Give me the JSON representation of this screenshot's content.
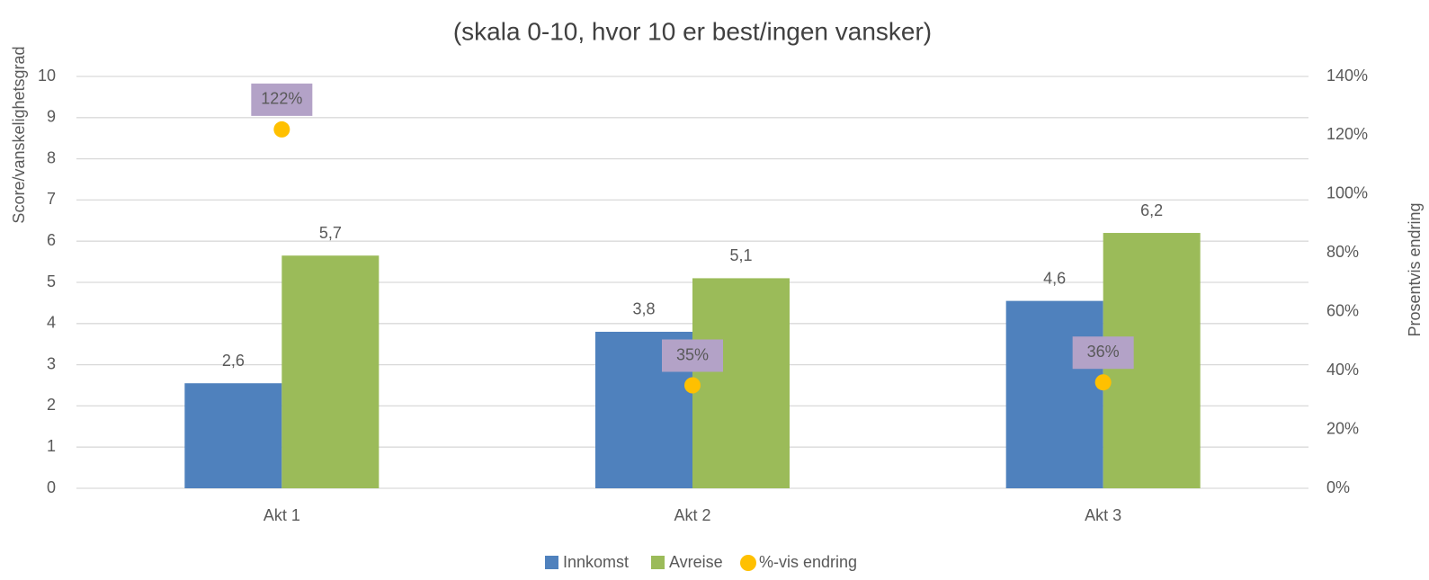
{
  "chart_data": {
    "type": "bar",
    "subtitle": "(skala 0-10, hvor 10 er best/ingen vansker)",
    "y_label": "Score/vanskelighetsgrad",
    "y2_label": "Prosentvis endring",
    "categories": [
      "Akt 1",
      "Akt 2",
      "Akt 3"
    ],
    "series": [
      {
        "name": "Innkomst",
        "color": "#4f81bd",
        "values": [
          2.55,
          3.8,
          4.55
        ],
        "value_labels": [
          "2,6",
          "3,8",
          "4,6"
        ]
      },
      {
        "name": "Avreise",
        "color": "#9bbb59",
        "values": [
          5.65,
          5.1,
          6.2
        ],
        "value_labels": [
          "5,7",
          "5,1",
          "6,2"
        ]
      },
      {
        "name": "%-vis endring",
        "color": "#ffc000",
        "type": "scatter",
        "axis": "y2",
        "values": [
          122,
          35,
          36
        ],
        "value_labels": [
          "122%",
          "35%",
          "36%"
        ]
      }
    ],
    "ylim": [
      0,
      10
    ],
    "yticks": [
      0,
      1,
      2,
      3,
      4,
      5,
      6,
      7,
      8,
      9,
      10
    ],
    "y2lim": [
      0,
      140
    ],
    "y2ticks": [
      {
        "value": 0,
        "label": "0%"
      },
      {
        "value": 20,
        "label": "20%"
      },
      {
        "value": 40,
        "label": "40%"
      },
      {
        "value": 60,
        "label": "60%"
      },
      {
        "value": 80,
        "label": "80%"
      },
      {
        "value": 100,
        "label": "100%"
      },
      {
        "value": 120,
        "label": "120%"
      },
      {
        "value": 140,
        "label": "140%"
      }
    ],
    "grid": true,
    "legend": "bottom"
  }
}
